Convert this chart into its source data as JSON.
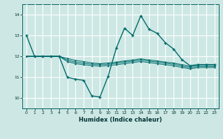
{
  "title": "",
  "xlabel": "Humidex (Indice chaleur)",
  "ylabel": "",
  "bg_color": "#cde8e4",
  "grid_color": "#ffffff",
  "line_color": "#006b6b",
  "xlim": [
    -0.5,
    23.5
  ],
  "ylim": [
    9.5,
    14.5
  ],
  "yticks": [
    10,
    11,
    12,
    13,
    14
  ],
  "xticks": [
    0,
    1,
    2,
    3,
    4,
    5,
    6,
    7,
    8,
    9,
    10,
    11,
    12,
    13,
    14,
    15,
    16,
    17,
    18,
    19,
    20,
    21,
    22,
    23
  ],
  "line1": [
    [
      0,
      13.0
    ],
    [
      1,
      12.0
    ],
    [
      2,
      12.0
    ],
    [
      3,
      12.0
    ],
    [
      4,
      12.0
    ],
    [
      5,
      11.0
    ],
    [
      6,
      10.9
    ],
    [
      7,
      10.85
    ],
    [
      8,
      10.1
    ],
    [
      9,
      10.05
    ],
    [
      10,
      11.05
    ],
    [
      11,
      12.4
    ],
    [
      12,
      13.35
    ],
    [
      13,
      13.0
    ],
    [
      14,
      13.95
    ],
    [
      15,
      13.3
    ],
    [
      16,
      13.1
    ],
    [
      17,
      12.65
    ],
    [
      18,
      12.35
    ],
    [
      19,
      11.85
    ],
    [
      20,
      11.55
    ],
    [
      21,
      11.6
    ],
    [
      22,
      11.6
    ],
    [
      23,
      11.6
    ]
  ],
  "line2": [
    [
      0,
      12.0
    ],
    [
      1,
      12.0
    ],
    [
      2,
      12.0
    ],
    [
      3,
      12.0
    ],
    [
      4,
      12.0
    ],
    [
      5,
      11.9
    ],
    [
      6,
      11.8
    ],
    [
      7,
      11.75
    ],
    [
      8,
      11.68
    ],
    [
      9,
      11.65
    ],
    [
      10,
      11.68
    ],
    [
      11,
      11.72
    ],
    [
      12,
      11.78
    ],
    [
      13,
      11.82
    ],
    [
      14,
      11.88
    ],
    [
      15,
      11.82
    ],
    [
      16,
      11.78
    ],
    [
      17,
      11.72
    ],
    [
      18,
      11.68
    ],
    [
      19,
      11.6
    ],
    [
      20,
      11.52
    ],
    [
      21,
      11.58
    ],
    [
      22,
      11.58
    ],
    [
      23,
      11.58
    ]
  ],
  "line3": [
    [
      0,
      12.0
    ],
    [
      1,
      12.0
    ],
    [
      2,
      12.0
    ],
    [
      3,
      12.0
    ],
    [
      4,
      12.0
    ],
    [
      5,
      11.82
    ],
    [
      6,
      11.72
    ],
    [
      7,
      11.67
    ],
    [
      8,
      11.62
    ],
    [
      9,
      11.6
    ],
    [
      10,
      11.62
    ],
    [
      11,
      11.67
    ],
    [
      12,
      11.72
    ],
    [
      13,
      11.77
    ],
    [
      14,
      11.82
    ],
    [
      15,
      11.77
    ],
    [
      16,
      11.72
    ],
    [
      17,
      11.67
    ],
    [
      18,
      11.62
    ],
    [
      19,
      11.54
    ],
    [
      20,
      11.46
    ],
    [
      21,
      11.52
    ],
    [
      22,
      11.52
    ],
    [
      23,
      11.52
    ]
  ],
  "line4": [
    [
      0,
      12.0
    ],
    [
      1,
      12.0
    ],
    [
      2,
      12.0
    ],
    [
      3,
      12.0
    ],
    [
      4,
      12.0
    ],
    [
      5,
      11.75
    ],
    [
      6,
      11.65
    ],
    [
      7,
      11.6
    ],
    [
      8,
      11.55
    ],
    [
      9,
      11.53
    ],
    [
      10,
      11.55
    ],
    [
      11,
      11.6
    ],
    [
      12,
      11.65
    ],
    [
      13,
      11.7
    ],
    [
      14,
      11.75
    ],
    [
      15,
      11.7
    ],
    [
      16,
      11.65
    ],
    [
      17,
      11.6
    ],
    [
      18,
      11.55
    ],
    [
      19,
      11.47
    ],
    [
      20,
      11.4
    ],
    [
      21,
      11.46
    ],
    [
      22,
      11.46
    ],
    [
      23,
      11.46
    ]
  ]
}
